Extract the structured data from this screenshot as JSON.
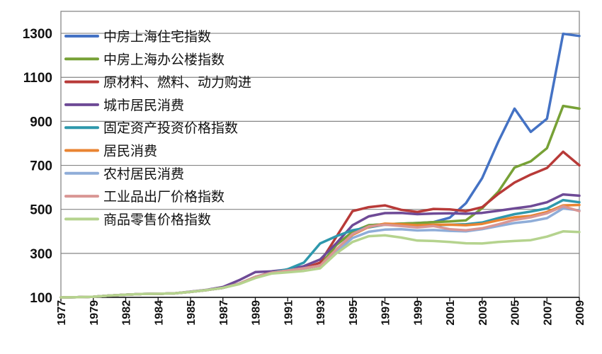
{
  "chart_data": {
    "type": "line",
    "title": "",
    "xlabel": "",
    "ylabel": "",
    "ylim": [
      100,
      1400
    ],
    "yticks": [
      100,
      300,
      500,
      700,
      900,
      1100,
      1300
    ],
    "x_start": 1977,
    "x_end": 2009,
    "xtick_labels": [
      "1977",
      "1979",
      "1982",
      "1984",
      "1985",
      "1987",
      "1989",
      "1991",
      "1993",
      "1995",
      "1997",
      "1999",
      "2001",
      "2003",
      "2005",
      "2007",
      "2009"
    ],
    "x": [
      1977,
      1978,
      1979,
      1980,
      1981,
      1982,
      1983,
      1984,
      1985,
      1986,
      1987,
      1988,
      1989,
      1990,
      1991,
      1992,
      1993,
      1994,
      1995,
      1996,
      1997,
      1998,
      1999,
      2000,
      2001,
      2002,
      2003,
      2004,
      2005,
      2006,
      2007,
      2008,
      2009
    ],
    "legend_position": "top-left",
    "series": [
      {
        "name": "中房上海住宅指数",
        "color": "#4472C4",
        "values": [
          100,
          101,
          103,
          108,
          112,
          115,
          116,
          118,
          125,
          133,
          143,
          162,
          193,
          212,
          222,
          232,
          244,
          338,
          398,
          428,
          432,
          435,
          438,
          442,
          462,
          528,
          642,
          808,
          958,
          852,
          912,
          1298,
          1288
        ]
      },
      {
        "name": "中房上海办公楼指数",
        "color": "#77A136",
        "values": [
          100,
          101,
          103,
          108,
          112,
          115,
          116,
          118,
          125,
          133,
          143,
          162,
          193,
          212,
          222,
          232,
          244,
          338,
          398,
          428,
          432,
          435,
          438,
          442,
          445,
          450,
          505,
          580,
          690,
          718,
          778,
          970,
          958
        ]
      },
      {
        "name": "原材料、燃料、动力购进",
        "color": "#B83A38",
        "values": [
          100,
          101,
          103,
          108,
          112,
          115,
          116,
          118,
          125,
          133,
          143,
          162,
          193,
          214,
          222,
          232,
          258,
          375,
          492,
          510,
          518,
          498,
          488,
          502,
          500,
          492,
          510,
          570,
          622,
          658,
          688,
          762,
          700
        ]
      },
      {
        "name": "城市居民消费",
        "color": "#6E4A96",
        "values": [
          100,
          101,
          103,
          108,
          112,
          115,
          116,
          118,
          126,
          134,
          147,
          178,
          215,
          218,
          226,
          242,
          272,
          346,
          428,
          468,
          483,
          484,
          478,
          481,
          482,
          480,
          484,
          494,
          504,
          514,
          532,
          568,
          562
        ]
      },
      {
        "name": "固定资产投资价格指数",
        "color": "#2E98AC",
        "values": [
          100,
          101,
          103,
          108,
          112,
          115,
          116,
          118,
          125,
          133,
          143,
          162,
          193,
          212,
          228,
          258,
          345,
          378,
          405,
          418,
          430,
          428,
          426,
          428,
          430,
          432,
          440,
          460,
          478,
          490,
          504,
          542,
          532
        ]
      },
      {
        "name": "居民消费",
        "color": "#E98432",
        "values": [
          100,
          101,
          103,
          108,
          112,
          115,
          116,
          118,
          125,
          133,
          143,
          162,
          193,
          212,
          222,
          232,
          244,
          318,
          384,
          420,
          435,
          432,
          428,
          430,
          430,
          428,
          434,
          450,
          464,
          470,
          488,
          518,
          520
        ]
      },
      {
        "name": "农村居民消费",
        "color": "#8FADD8",
        "values": [
          100,
          101,
          103,
          108,
          112,
          115,
          116,
          118,
          125,
          133,
          143,
          162,
          193,
          212,
          222,
          232,
          244,
          305,
          370,
          398,
          408,
          410,
          404,
          406,
          402,
          400,
          410,
          424,
          438,
          446,
          460,
          504,
          495
        ]
      },
      {
        "name": "工业品出厂价格指数",
        "color": "#D99694",
        "values": [
          100,
          101,
          103,
          108,
          112,
          115,
          116,
          118,
          125,
          133,
          143,
          162,
          193,
          212,
          222,
          232,
          244,
          318,
          388,
          422,
          430,
          424,
          418,
          424,
          410,
          405,
          414,
          432,
          452,
          464,
          482,
          514,
          492
        ]
      },
      {
        "name": "商品零售价格指数",
        "color": "#B5D38E",
        "values": [
          100,
          101,
          103,
          108,
          112,
          115,
          116,
          118,
          125,
          133,
          143,
          160,
          188,
          208,
          214,
          220,
          232,
          300,
          352,
          378,
          382,
          372,
          358,
          356,
          352,
          346,
          345,
          352,
          356,
          360,
          376,
          400,
          397
        ]
      }
    ]
  }
}
